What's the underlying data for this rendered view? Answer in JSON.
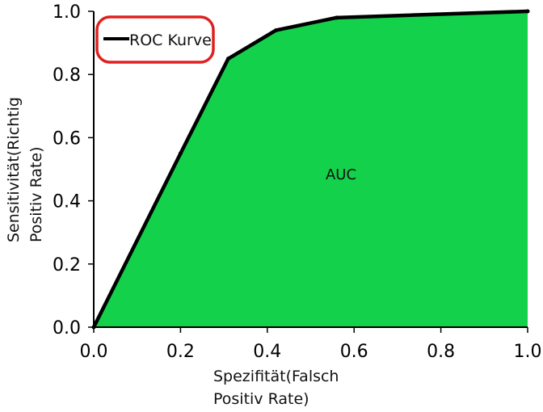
{
  "chart_data": {
    "type": "area",
    "x": [
      0.0,
      0.2,
      0.31,
      0.42,
      0.56,
      1.0
    ],
    "y": [
      0.0,
      0.55,
      0.85,
      0.94,
      0.98,
      1.0
    ],
    "xlabel": [
      "Spezifität(Falsch",
      "Positiv Rate)"
    ],
    "ylabel": [
      "Sensitivität(Richtig",
      "Positiv Rate)"
    ],
    "xlim": [
      0,
      1
    ],
    "ylim": [
      0,
      1
    ],
    "xticks": [
      "0.0",
      "0.2",
      "0.4",
      "0.6",
      "0.8",
      "1.0"
    ],
    "yticks": [
      "0.0",
      "0.2",
      "0.4",
      "0.6",
      "0.8",
      "1.0"
    ],
    "series": [
      {
        "name": "ROC Kurve",
        "color": "#000000"
      }
    ],
    "fill_color": "#14d14b",
    "highlight_color": "#e02020",
    "area_annotation": "AUC",
    "legend": {
      "placement": "top-left",
      "highlighted": true
    },
    "grid": false
  }
}
